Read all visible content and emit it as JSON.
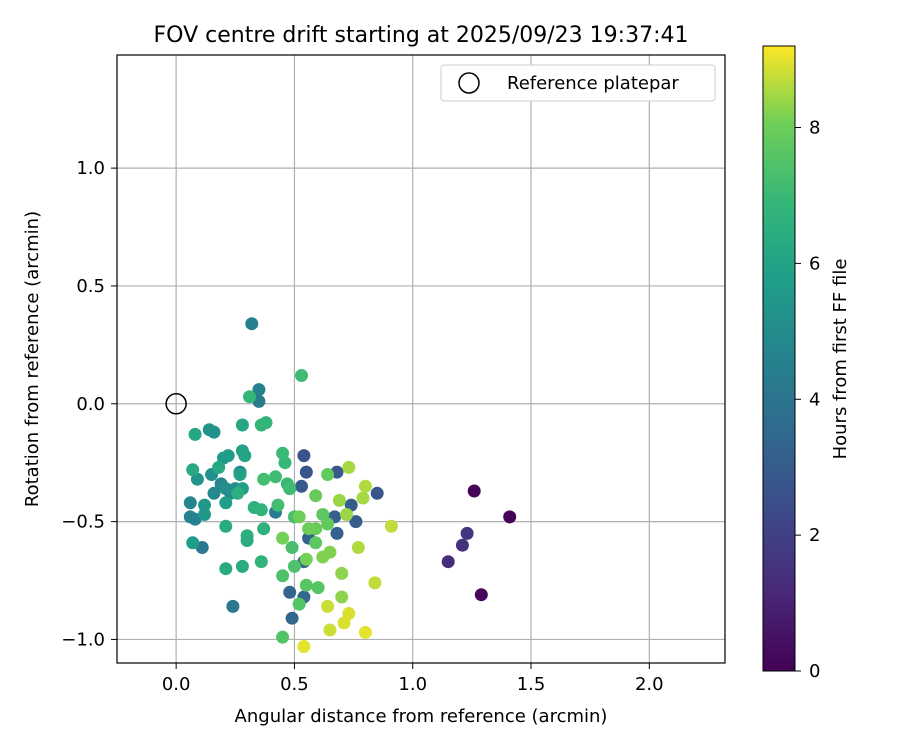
{
  "chart_data": {
    "type": "scatter",
    "title": "FOV centre drift starting at 2025/09/23 19:37:41",
    "xlabel": "Angular distance from reference (arcmin)",
    "ylabel": "Rotation from reference (arcmin)",
    "xlim": [
      -0.25,
      2.32
    ],
    "ylim": [
      -1.1,
      1.48
    ],
    "x_ticks": [
      0.0,
      0.5,
      1.0,
      1.5,
      2.0
    ],
    "x_tick_labels": [
      "0.0",
      "0.5",
      "1.0",
      "1.5",
      "2.0"
    ],
    "y_ticks": [
      -1.0,
      -0.5,
      0.0,
      0.5,
      1.0
    ],
    "y_tick_labels": [
      "−1.0",
      "−0.5",
      "0.0",
      "0.5",
      "1.0"
    ],
    "grid": true,
    "legend": {
      "position": "top-right",
      "entries": [
        "Reference platepar"
      ]
    },
    "reference_point": {
      "x": 0.0,
      "y": 0.0,
      "label": "Reference platepar"
    },
    "colorbar": {
      "label": "Hours from first FF file",
      "colormap": "viridis",
      "range": [
        0,
        9.2
      ],
      "ticks": [
        0,
        2,
        4,
        6,
        8
      ],
      "tick_labels": [
        "0",
        "2",
        "4",
        "6",
        "8"
      ]
    },
    "points": [
      {
        "x": 1.26,
        "y": -0.37,
        "h": 0.1
      },
      {
        "x": 1.41,
        "y": -0.48,
        "h": 0.1
      },
      {
        "x": 1.29,
        "y": -0.81,
        "h": 0.2
      },
      {
        "x": 1.15,
        "y": -0.67,
        "h": 1.3
      },
      {
        "x": 1.21,
        "y": -0.6,
        "h": 1.5
      },
      {
        "x": 1.23,
        "y": -0.55,
        "h": 1.6
      },
      {
        "x": 0.54,
        "y": -0.22,
        "h": 2.7
      },
      {
        "x": 0.55,
        "y": -0.29,
        "h": 2.8
      },
      {
        "x": 0.53,
        "y": -0.35,
        "h": 2.9
      },
      {
        "x": 0.68,
        "y": -0.29,
        "h": 2.9
      },
      {
        "x": 0.85,
        "y": -0.38,
        "h": 2.8
      },
      {
        "x": 0.74,
        "y": -0.43,
        "h": 3.0
      },
      {
        "x": 0.76,
        "y": -0.5,
        "h": 3.0
      },
      {
        "x": 0.67,
        "y": -0.48,
        "h": 3.1
      },
      {
        "x": 0.56,
        "y": -0.57,
        "h": 3.2
      },
      {
        "x": 0.68,
        "y": -0.55,
        "h": 3.2
      },
      {
        "x": 0.54,
        "y": -0.67,
        "h": 3.3
      },
      {
        "x": 0.48,
        "y": -0.8,
        "h": 3.3
      },
      {
        "x": 0.54,
        "y": -0.82,
        "h": 3.4
      },
      {
        "x": 0.49,
        "y": -0.91,
        "h": 3.4
      },
      {
        "x": 0.24,
        "y": -0.86,
        "h": 4.1
      },
      {
        "x": 0.11,
        "y": -0.61,
        "h": 4.1
      },
      {
        "x": 0.35,
        "y": 0.01,
        "h": 4.3
      },
      {
        "x": 0.42,
        "y": -0.46,
        "h": 4.3
      },
      {
        "x": 0.32,
        "y": 0.34,
        "h": 4.5
      },
      {
        "x": 0.35,
        "y": 0.06,
        "h": 4.5
      },
      {
        "x": 0.06,
        "y": -0.48,
        "h": 4.6
      },
      {
        "x": 0.08,
        "y": -0.49,
        "h": 4.6
      },
      {
        "x": 0.06,
        "y": -0.42,
        "h": 4.7
      },
      {
        "x": 0.19,
        "y": -0.34,
        "h": 4.8
      },
      {
        "x": 0.16,
        "y": -0.38,
        "h": 4.9
      },
      {
        "x": 0.23,
        "y": -0.38,
        "h": 4.9
      },
      {
        "x": 0.25,
        "y": -0.36,
        "h": 5.0
      },
      {
        "x": 0.27,
        "y": -0.29,
        "h": 5.0
      },
      {
        "x": 0.21,
        "y": -0.36,
        "h": 5.1
      },
      {
        "x": 0.15,
        "y": -0.3,
        "h": 5.2
      },
      {
        "x": 0.14,
        "y": -0.11,
        "h": 5.3
      },
      {
        "x": 0.16,
        "y": -0.12,
        "h": 5.3
      },
      {
        "x": 0.09,
        "y": -0.32,
        "h": 5.4
      },
      {
        "x": 0.12,
        "y": -0.47,
        "h": 5.5
      },
      {
        "x": 0.12,
        "y": -0.43,
        "h": 5.5
      },
      {
        "x": 0.2,
        "y": -0.23,
        "h": 5.6
      },
      {
        "x": 0.22,
        "y": -0.22,
        "h": 5.7
      },
      {
        "x": 0.07,
        "y": -0.59,
        "h": 5.7
      },
      {
        "x": 0.21,
        "y": -0.42,
        "h": 5.8
      },
      {
        "x": 0.28,
        "y": -0.36,
        "h": 5.8
      },
      {
        "x": 0.27,
        "y": -0.3,
        "h": 5.9
      },
      {
        "x": 0.29,
        "y": -0.22,
        "h": 6.0
      },
      {
        "x": 0.28,
        "y": -0.2,
        "h": 6.0
      },
      {
        "x": 0.28,
        "y": -0.09,
        "h": 6.1
      },
      {
        "x": 0.08,
        "y": -0.13,
        "h": 6.1
      },
      {
        "x": 0.07,
        "y": -0.28,
        "h": 6.2
      },
      {
        "x": 0.18,
        "y": -0.27,
        "h": 6.2
      },
      {
        "x": 0.21,
        "y": -0.52,
        "h": 6.3
      },
      {
        "x": 0.21,
        "y": -0.7,
        "h": 6.3
      },
      {
        "x": 0.28,
        "y": -0.69,
        "h": 6.4
      },
      {
        "x": 0.3,
        "y": -0.58,
        "h": 6.4
      },
      {
        "x": 0.3,
        "y": -0.56,
        "h": 6.5
      },
      {
        "x": 0.26,
        "y": -0.38,
        "h": 6.5
      },
      {
        "x": 0.33,
        "y": -0.44,
        "h": 6.6
      },
      {
        "x": 0.37,
        "y": -0.53,
        "h": 6.6
      },
      {
        "x": 0.36,
        "y": -0.45,
        "h": 6.7
      },
      {
        "x": 0.36,
        "y": -0.67,
        "h": 6.7
      },
      {
        "x": 0.36,
        "y": -0.09,
        "h": 6.8
      },
      {
        "x": 0.38,
        "y": -0.08,
        "h": 6.8
      },
      {
        "x": 0.31,
        "y": 0.03,
        "h": 6.9
      },
      {
        "x": 0.46,
        "y": -0.25,
        "h": 6.9
      },
      {
        "x": 0.45,
        "y": -0.21,
        "h": 7.0
      },
      {
        "x": 0.47,
        "y": -0.34,
        "h": 7.0
      },
      {
        "x": 0.48,
        "y": -0.36,
        "h": 7.1
      },
      {
        "x": 0.42,
        "y": -0.31,
        "h": 7.1
      },
      {
        "x": 0.37,
        "y": -0.32,
        "h": 7.2
      },
      {
        "x": 0.43,
        "y": -0.43,
        "h": 7.2
      },
      {
        "x": 0.5,
        "y": -0.48,
        "h": 7.3
      },
      {
        "x": 0.49,
        "y": -0.61,
        "h": 7.3
      },
      {
        "x": 0.5,
        "y": -0.69,
        "h": 7.4
      },
      {
        "x": 0.45,
        "y": -0.73,
        "h": 7.4
      },
      {
        "x": 0.45,
        "y": -0.99,
        "h": 7.5
      },
      {
        "x": 0.52,
        "y": -0.85,
        "h": 7.5
      },
      {
        "x": 0.55,
        "y": -0.77,
        "h": 7.6
      },
      {
        "x": 0.6,
        "y": -0.78,
        "h": 7.6
      },
      {
        "x": 0.53,
        "y": 0.12,
        "h": 7.1
      },
      {
        "x": 0.59,
        "y": -0.59,
        "h": 7.7
      },
      {
        "x": 0.62,
        "y": -0.47,
        "h": 7.7
      },
      {
        "x": 0.64,
        "y": -0.51,
        "h": 7.8
      },
      {
        "x": 0.64,
        "y": -0.3,
        "h": 7.8
      },
      {
        "x": 0.59,
        "y": -0.39,
        "h": 7.9
      },
      {
        "x": 0.59,
        "y": -0.53,
        "h": 7.9
      },
      {
        "x": 0.56,
        "y": -0.53,
        "h": 8.0
      },
      {
        "x": 0.52,
        "y": -0.48,
        "h": 8.0
      },
      {
        "x": 0.45,
        "y": -0.57,
        "h": 8.1
      },
      {
        "x": 0.55,
        "y": -0.66,
        "h": 8.1
      },
      {
        "x": 0.62,
        "y": -0.65,
        "h": 8.2
      },
      {
        "x": 0.65,
        "y": -0.63,
        "h": 8.2
      },
      {
        "x": 0.7,
        "y": -0.72,
        "h": 8.3
      },
      {
        "x": 0.7,
        "y": -0.82,
        "h": 8.3
      },
      {
        "x": 0.69,
        "y": -0.41,
        "h": 8.4
      },
      {
        "x": 0.72,
        "y": -0.47,
        "h": 8.4
      },
      {
        "x": 0.73,
        "y": -0.27,
        "h": 8.5
      },
      {
        "x": 0.79,
        "y": -0.4,
        "h": 8.5
      },
      {
        "x": 0.8,
        "y": -0.35,
        "h": 8.6
      },
      {
        "x": 0.77,
        "y": -0.61,
        "h": 8.6
      },
      {
        "x": 0.84,
        "y": -0.76,
        "h": 8.7
      },
      {
        "x": 0.91,
        "y": -0.52,
        "h": 8.7
      },
      {
        "x": 0.64,
        "y": -0.86,
        "h": 8.8
      },
      {
        "x": 0.65,
        "y": -0.96,
        "h": 8.8
      },
      {
        "x": 0.71,
        "y": -0.93,
        "h": 8.9
      },
      {
        "x": 0.73,
        "y": -0.89,
        "h": 8.9
      },
      {
        "x": 0.8,
        "y": -0.97,
        "h": 9.0
      },
      {
        "x": 0.54,
        "y": -1.03,
        "h": 9.0
      }
    ]
  }
}
